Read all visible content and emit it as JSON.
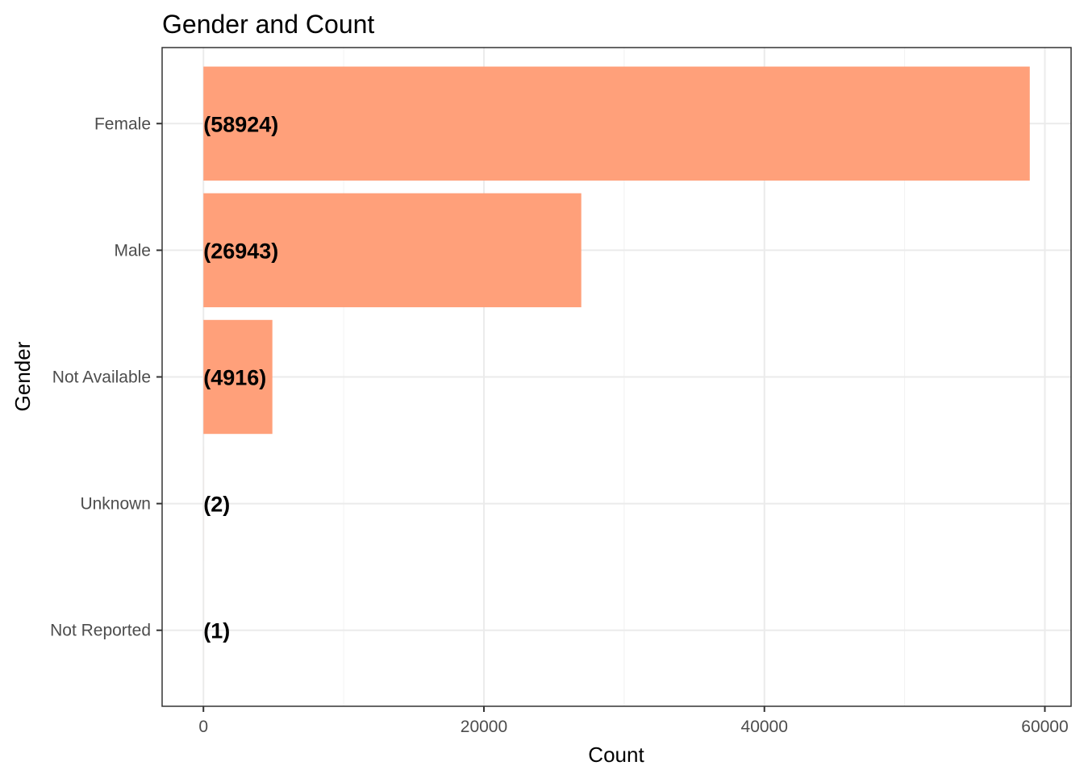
{
  "chart_data": {
    "type": "bar",
    "orientation": "horizontal",
    "title": "Gender and Count",
    "xlabel": "Count",
    "ylabel": "Gender",
    "categories": [
      "Female",
      "Male",
      "Not Available",
      "Unknown",
      "Not Reported"
    ],
    "values": [
      58924,
      26943,
      4916,
      2,
      1
    ],
    "data_labels": [
      "(58924)",
      "(26943)",
      "(4916)",
      "(2)",
      "(1)"
    ],
    "x_ticks": [
      0,
      20000,
      40000,
      60000
    ],
    "x_tick_labels": [
      "0",
      "20000",
      "40000",
      "60000"
    ],
    "xlim": [
      -2946.2,
      61870.2
    ],
    "grid": true,
    "legend": "none",
    "bar_color": "#FFA07A"
  }
}
